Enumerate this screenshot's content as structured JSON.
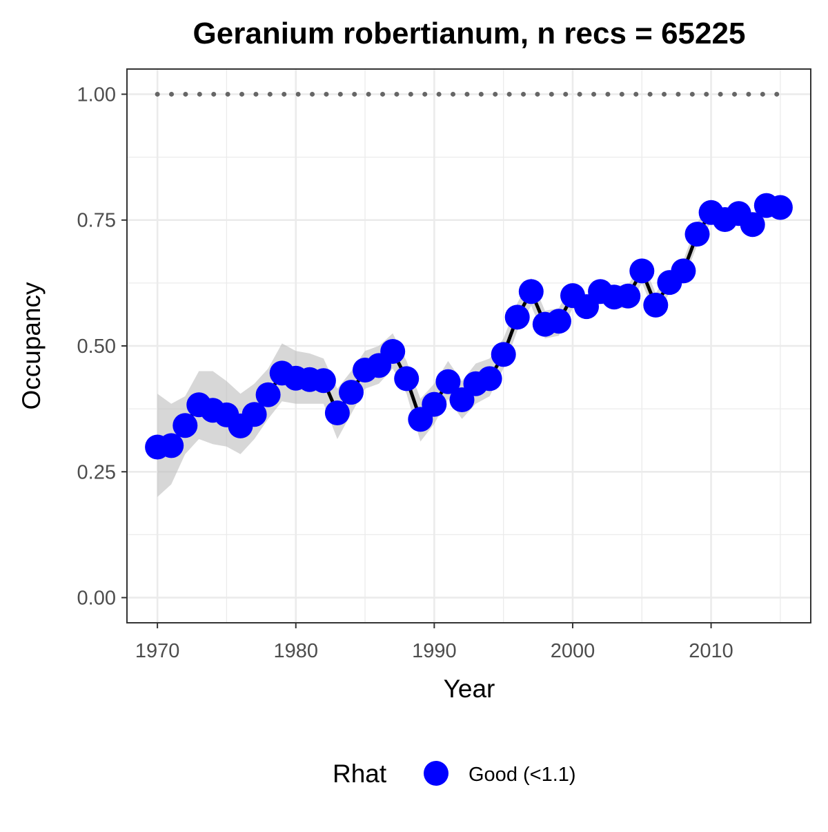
{
  "chart_data": {
    "type": "line",
    "title": "Geranium robertianum, n recs = 65225",
    "xlabel": "Year",
    "ylabel": "Occupancy",
    "xlim": [
      1967.8,
      2017.2
    ],
    "ylim": [
      -0.05,
      1.05
    ],
    "x_ticks": [
      1970,
      1980,
      1990,
      2000,
      2010
    ],
    "y_ticks": [
      0.0,
      0.25,
      0.5,
      0.75,
      1.0
    ],
    "y_tick_labels": [
      "0.00",
      "0.25",
      "0.50",
      "0.75",
      "1.00"
    ],
    "x_tick_labels": [
      "1970",
      "1980",
      "1990",
      "2000",
      "2010"
    ],
    "grid": true,
    "reference_line": {
      "y": 1.0,
      "style": "dotted",
      "color": "#666666"
    },
    "legend": {
      "title": "Rhat",
      "position": "bottom",
      "entries": [
        {
          "label": "Good (<1.1)",
          "color": "#0000ff"
        }
      ]
    },
    "colors": {
      "point": "#0000ff",
      "line": "#000000",
      "ribbon": "#bdbdbd",
      "grid": "#ebebeb",
      "panel_border": "#333333"
    },
    "x": [
      1970,
      1971,
      1972,
      1973,
      1974,
      1975,
      1976,
      1977,
      1978,
      1979,
      1980,
      1981,
      1982,
      1983,
      1984,
      1985,
      1986,
      1987,
      1988,
      1989,
      1990,
      1991,
      1992,
      1993,
      1994,
      1995,
      1996,
      1997,
      1998,
      1999,
      2000,
      2001,
      2002,
      2003,
      2004,
      2005,
      2006,
      2007,
      2008,
      2009,
      2010,
      2011,
      2012,
      2013,
      2014,
      2015
    ],
    "series": [
      {
        "values": [
          0.299,
          0.302,
          0.342,
          0.383,
          0.372,
          0.363,
          0.341,
          0.364,
          0.403,
          0.446,
          0.436,
          0.433,
          0.431,
          0.367,
          0.408,
          0.452,
          0.461,
          0.489,
          0.435,
          0.354,
          0.384,
          0.429,
          0.393,
          0.425,
          0.435,
          0.483,
          0.557,
          0.608,
          0.543,
          0.549,
          0.6,
          0.578,
          0.608,
          0.597,
          0.599,
          0.649,
          0.581,
          0.626,
          0.649,
          0.722,
          0.765,
          0.751,
          0.763,
          0.741,
          0.779,
          0.775
        ],
        "lower": [
          0.2,
          0.225,
          0.285,
          0.315,
          0.305,
          0.3,
          0.285,
          0.315,
          0.355,
          0.39,
          0.385,
          0.385,
          0.385,
          0.315,
          0.365,
          0.415,
          0.425,
          0.455,
          0.405,
          0.31,
          0.345,
          0.395,
          0.355,
          0.385,
          0.4,
          0.455,
          0.53,
          0.58,
          0.515,
          0.52,
          0.575,
          0.555,
          0.585,
          0.575,
          0.575,
          0.625,
          0.56,
          0.605,
          0.63,
          0.7,
          0.745,
          0.73,
          0.745,
          0.72,
          0.76,
          0.755
        ],
        "upper": [
          0.405,
          0.385,
          0.4,
          0.45,
          0.45,
          0.43,
          0.405,
          0.425,
          0.455,
          0.505,
          0.49,
          0.485,
          0.475,
          0.415,
          0.45,
          0.49,
          0.5,
          0.525,
          0.47,
          0.395,
          0.425,
          0.47,
          0.43,
          0.465,
          0.475,
          0.515,
          0.585,
          0.635,
          0.57,
          0.575,
          0.625,
          0.6,
          0.63,
          0.62,
          0.62,
          0.67,
          0.605,
          0.645,
          0.67,
          0.745,
          0.785,
          0.77,
          0.785,
          0.76,
          0.8,
          0.795
        ]
      }
    ]
  }
}
